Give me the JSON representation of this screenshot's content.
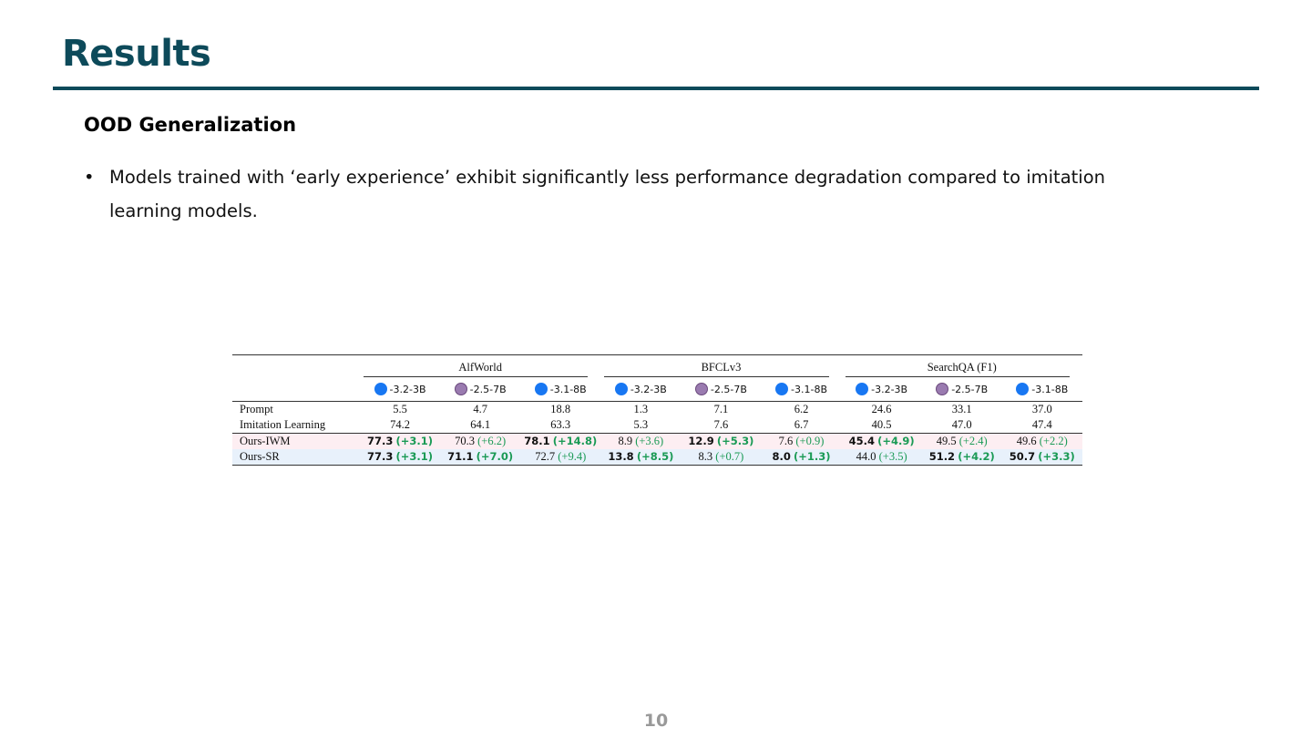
{
  "header": {
    "title": "Results",
    "subtitle": "OOD Generalization"
  },
  "bullets": [
    "Models trained with ‘early experience’ exhibit significantly less performance degradation compared to imitation learning models."
  ],
  "table": {
    "groups": [
      "AlfWorld",
      "BFCLv3",
      "SearchQA (F1)"
    ],
    "models": [
      "-3.2-3B",
      "-2.5-7B",
      "-3.1-8B",
      "-3.2-3B",
      "-2.5-7B",
      "-3.1-8B",
      "-3.2-3B",
      "-2.5-7B",
      "-3.1-8B"
    ],
    "rows": [
      {
        "label": "Prompt",
        "cells": [
          {
            "value": "5.5"
          },
          {
            "value": "4.7"
          },
          {
            "value": "18.8"
          },
          {
            "value": "1.3"
          },
          {
            "value": "7.1"
          },
          {
            "value": "6.2"
          },
          {
            "value": "24.6"
          },
          {
            "value": "33.1"
          },
          {
            "value": "37.0"
          }
        ]
      },
      {
        "label": "Imitation Learning",
        "cells": [
          {
            "value": "74.2"
          },
          {
            "value": "64.1"
          },
          {
            "value": "63.3"
          },
          {
            "value": "5.3"
          },
          {
            "value": "7.6"
          },
          {
            "value": "6.7"
          },
          {
            "value": "40.5"
          },
          {
            "value": "47.0"
          },
          {
            "value": "47.4"
          }
        ]
      },
      {
        "label": "Ours-IWM",
        "highlight": "#fdeef2",
        "cells": [
          {
            "value": "77.3",
            "delta": "(+3.1)",
            "bold": true
          },
          {
            "value": "70.3",
            "delta": "(+6.2)"
          },
          {
            "value": "78.1",
            "delta": "(+14.8)",
            "bold": true
          },
          {
            "value": "8.9",
            "delta": "(+3.6)"
          },
          {
            "value": "12.9",
            "delta": "(+5.3)",
            "bold": true
          },
          {
            "value": "7.6",
            "delta": "(+0.9)"
          },
          {
            "value": "45.4",
            "delta": "(+4.9)",
            "bold": true
          },
          {
            "value": "49.5",
            "delta": "(+2.4)"
          },
          {
            "value": "49.6",
            "delta": "(+2.2)"
          }
        ]
      },
      {
        "label": "Ours-SR",
        "highlight": "#e8f1fb",
        "cells": [
          {
            "value": "77.3",
            "delta": "(+3.1)",
            "bold": true
          },
          {
            "value": "71.1",
            "delta": "(+7.0)",
            "bold": true
          },
          {
            "value": "72.7",
            "delta": "(+9.4)"
          },
          {
            "value": "13.8",
            "delta": "(+8.5)",
            "bold": true
          },
          {
            "value": "8.3",
            "delta": "(+0.7)"
          },
          {
            "value": "8.0",
            "delta": "(+1.3)",
            "bold": true
          },
          {
            "value": "44.0",
            "delta": "(+3.5)"
          },
          {
            "value": "51.2",
            "delta": "(+4.2)",
            "bold": true
          },
          {
            "value": "50.7",
            "delta": "(+3.3)",
            "bold": true
          }
        ]
      }
    ]
  },
  "page_number": "10"
}
